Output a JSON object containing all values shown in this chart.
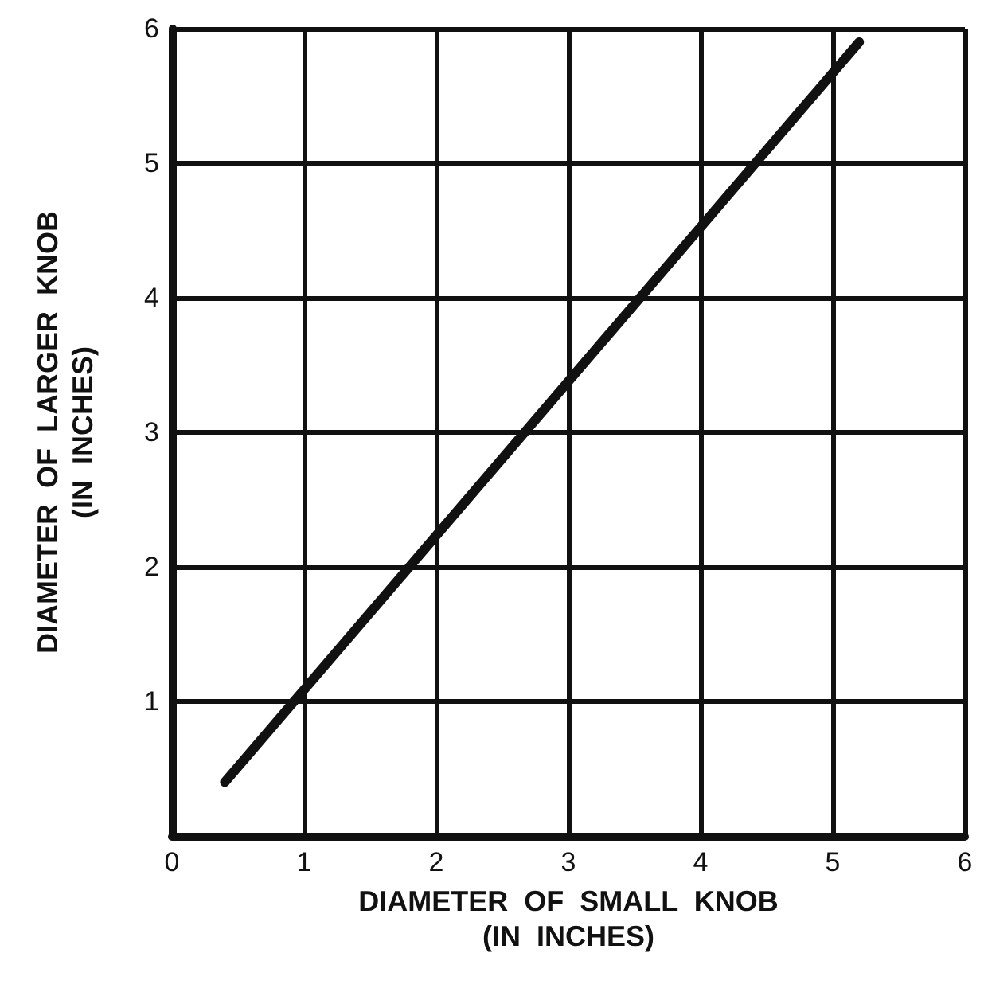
{
  "chart_data": {
    "type": "line",
    "xlabel": "DIAMETER  OF  SMALL  KNOB\n(IN  INCHES)",
    "ylabel": "DIAMETER  OF  LARGER  KNOB\n(IN  INCHES)",
    "series": [
      {
        "color": "#111111",
        "x": [
          0.4,
          5.2
        ],
        "values": [
          0.4,
          5.9
        ]
      }
    ],
    "xlim": [
      0,
      6
    ],
    "xticks": [
      0,
      1,
      2,
      3,
      4,
      5,
      6
    ],
    "ylim": [
      0,
      6
    ],
    "yticks": [
      {
        "value": 0,
        "label": null
      },
      1,
      2,
      3,
      4,
      5,
      6
    ],
    "grid": true,
    "marker": "none",
    "line_style": "solid"
  }
}
